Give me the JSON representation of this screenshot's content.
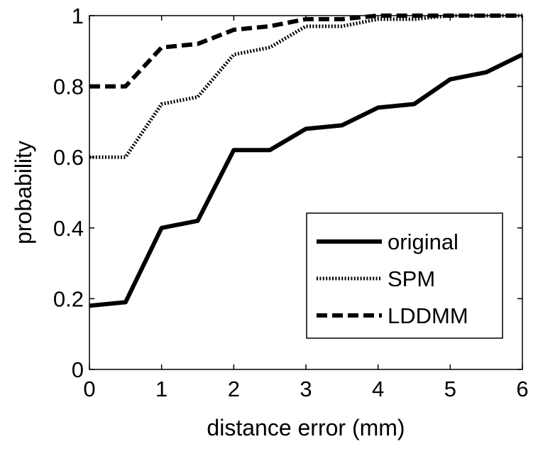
{
  "chart_data": {
    "type": "line",
    "title": "",
    "xlabel": "distance error (mm)",
    "ylabel": "probability",
    "xlim": [
      0,
      6
    ],
    "ylim": [
      0,
      1
    ],
    "xticks": [
      0,
      1,
      2,
      3,
      4,
      5,
      6
    ],
    "yticks": [
      0,
      0.2,
      0.4,
      0.6,
      0.8,
      1
    ],
    "ytick_labels": [
      "0",
      "0.2",
      "0.4",
      "0.6",
      "0.8",
      "1"
    ],
    "grid": false,
    "legend_position": "bottom-right",
    "x": [
      0,
      0.5,
      1,
      1.5,
      2,
      2.5,
      3,
      3.5,
      4,
      4.5,
      5,
      5.5,
      6
    ],
    "series": [
      {
        "name": "original",
        "style": "solid",
        "color": "#000000",
        "values": [
          0.18,
          0.19,
          0.4,
          0.42,
          0.62,
          0.62,
          0.68,
          0.69,
          0.74,
          0.75,
          0.82,
          0.84,
          0.89
        ]
      },
      {
        "name": "SPM",
        "style": "dotted",
        "color": "#000000",
        "values": [
          0.6,
          0.6,
          0.75,
          0.77,
          0.89,
          0.91,
          0.97,
          0.97,
          0.99,
          0.99,
          1.0,
          1.0,
          1.0
        ]
      },
      {
        "name": "LDDMM",
        "style": "dashed",
        "color": "#000000",
        "values": [
          0.8,
          0.8,
          0.91,
          0.92,
          0.96,
          0.97,
          0.99,
          0.99,
          1.0,
          1.0,
          1.0,
          1.0,
          1.0
        ]
      }
    ]
  }
}
